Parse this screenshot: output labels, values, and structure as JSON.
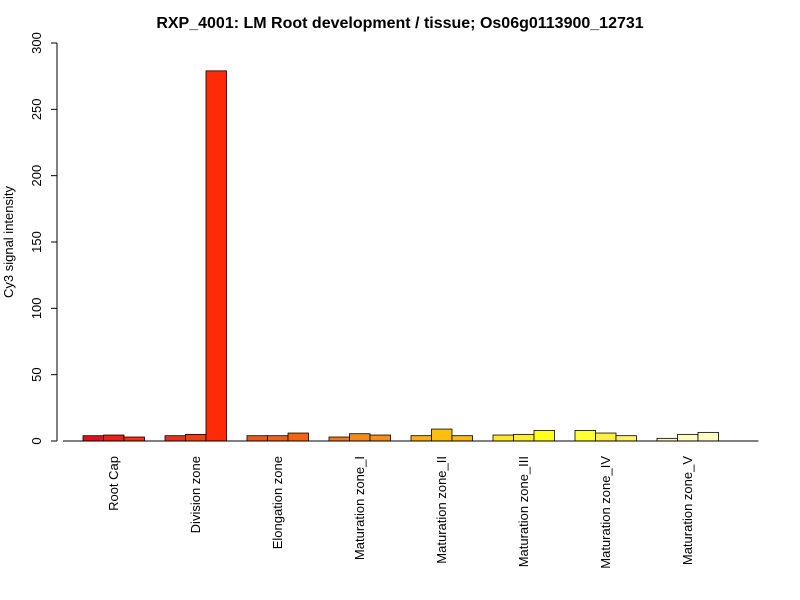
{
  "chart_data": {
    "type": "bar",
    "title": "RXP_4001: LM Root development / tissue; Os06g0113900_12731",
    "xlabel": "",
    "ylabel": "Cy3 signal intensity",
    "ylim": [
      0,
      300
    ],
    "yticks": [
      0,
      50,
      100,
      150,
      200,
      250,
      300
    ],
    "categories": [
      "Root Cap",
      "Division zone",
      "Elongation zone",
      "Maturation zone_I",
      "Maturation zone_II",
      "Maturation zone_III",
      "Maturation zone_IV",
      "Maturation zone_V"
    ],
    "replicates_per_category": 3,
    "values": [
      [
        4,
        4.5,
        3
      ],
      [
        4,
        5,
        279
      ],
      [
        4,
        4,
        6
      ],
      [
        3,
        5.5,
        4.5
      ],
      [
        4,
        9,
        4
      ],
      [
        4.5,
        5,
        8
      ],
      [
        8,
        6,
        4
      ],
      [
        2,
        5,
        6.5
      ]
    ],
    "colors": [
      "#e3101a",
      "#ec2016",
      "#ff2e0a",
      "#e8331c",
      "#f04012",
      "#ff2a08",
      "#e85a1a",
      "#f06018",
      "#f56410",
      "#f07a22",
      "#f28a1c",
      "#f58d20",
      "#fbb115",
      "#fcbf0e",
      "#fbb71a",
      "#fde727",
      "#ffee30",
      "#ffff1a",
      "#ffff36",
      "#ffef45",
      "#fff268",
      "#fffbb8",
      "#fffcc0",
      "#fffcc8"
    ]
  }
}
